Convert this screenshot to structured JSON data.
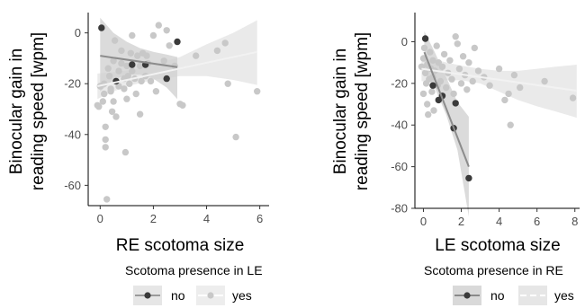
{
  "chart_data": [
    {
      "type": "scatter",
      "xlabel": "RE scotoma size",
      "ylabel_lines": [
        "Binocular gain in",
        "reading speed [wpm]"
      ],
      "xlim": [
        -0.45,
        6.35
      ],
      "ylim": [
        -68,
        8
      ],
      "xticks": [
        0,
        2,
        4,
        6
      ],
      "yticks": [
        0,
        -20,
        -40,
        -60
      ],
      "grid": false,
      "legend": {
        "title": "Scotoma presence in LE",
        "entries": [
          "no",
          "yes"
        ],
        "placement": "bottom"
      },
      "series": [
        {
          "name": "no",
          "color": "#3a3a3a",
          "fit": {
            "x": [
              0,
              2.9
            ],
            "y": [
              -9,
              -13.5
            ]
          },
          "band": {
            "x": [
              0,
              0.5,
              1,
              1.5,
              2,
              2.5,
              2.9
            ],
            "lower": [
              -23,
              -18.5,
              -16.5,
              -16.5,
              -18,
              -21.5,
              -26
            ],
            "upper": [
              6,
              0,
              -3.5,
              -6,
              -7.5,
              -8.5,
              -9.5
            ]
          },
          "points": [
            [
              0.05,
              2
            ],
            [
              0.6,
              -19
            ],
            [
              1.2,
              -12.5
            ],
            [
              1.7,
              -12.5
            ],
            [
              2.5,
              -18
            ],
            [
              2.9,
              -3.5
            ]
          ]
        },
        {
          "name": "yes",
          "color": "#c8c8c8",
          "fit": {
            "x": [
              -0.1,
              5.9
            ],
            "y": [
              -21,
              -7.5
            ]
          },
          "band": {
            "x": [
              -0.1,
              0.5,
              1.2,
              2,
              3,
              4,
              5,
              5.9
            ],
            "lower": [
              -26,
              -23,
              -20.5,
              -18.5,
              -17,
              -17,
              -18.5,
              -20.5
            ],
            "upper": [
              -16,
              -15.5,
              -14.5,
              -12.5,
              -9.5,
              -4.5,
              0,
              5
            ]
          },
          "points": [
            [
              -0.1,
              -28.5
            ],
            [
              -0.05,
              -29
            ],
            [
              0,
              -21
            ],
            [
              0.1,
              -27
            ],
            [
              0.15,
              -24
            ],
            [
              0.15,
              -20
            ],
            [
              0.2,
              -37
            ],
            [
              0.2,
              -42
            ],
            [
              0.2,
              -45
            ],
            [
              0.25,
              -65.5
            ],
            [
              0.3,
              -14
            ],
            [
              0.35,
              -17
            ],
            [
              0.4,
              -22
            ],
            [
              0.4,
              -23
            ],
            [
              0.45,
              -31
            ],
            [
              0.5,
              -27
            ],
            [
              0.5,
              -11
            ],
            [
              0.55,
              -3
            ],
            [
              0.6,
              -33
            ],
            [
              0.6,
              -19
            ],
            [
              0.7,
              -21
            ],
            [
              0.7,
              -15
            ],
            [
              0.8,
              -12
            ],
            [
              0.8,
              -7
            ],
            [
              0.9,
              -18
            ],
            [
              0.9,
              -22
            ],
            [
              0.95,
              -47
            ],
            [
              1,
              -13
            ],
            [
              1,
              -26
            ],
            [
              1.05,
              -17
            ],
            [
              1.1,
              -20
            ],
            [
              1.15,
              -8
            ],
            [
              1.2,
              -15
            ],
            [
              1.2,
              -1
            ],
            [
              1.3,
              -18
            ],
            [
              1.35,
              -24
            ],
            [
              1.4,
              -9
            ],
            [
              1.5,
              -13
            ],
            [
              1.5,
              -32
            ],
            [
              1.55,
              -19
            ],
            [
              1.6,
              -8
            ],
            [
              1.7,
              -17
            ],
            [
              1.75,
              -9
            ],
            [
              1.8,
              -12
            ],
            [
              1.9,
              -19
            ],
            [
              2,
              -1
            ],
            [
              2.1,
              -23
            ],
            [
              2.2,
              3
            ],
            [
              2.4,
              -11
            ],
            [
              2.5,
              1
            ],
            [
              2.6,
              -5
            ],
            [
              2.8,
              -13
            ],
            [
              3,
              -28
            ],
            [
              3.1,
              -28.5
            ],
            [
              3.6,
              -9
            ],
            [
              4.4,
              -7
            ],
            [
              4.7,
              -4
            ],
            [
              4.8,
              -20
            ],
            [
              5.1,
              -41
            ],
            [
              5.9,
              -23
            ]
          ]
        }
      ]
    },
    {
      "type": "scatter",
      "xlabel": "LE scotoma size",
      "ylabel_lines": [
        "Binocular gain in",
        "reading speed [wpm]"
      ],
      "xlim": [
        -0.45,
        8.25
      ],
      "ylim": [
        -80,
        14
      ],
      "xticks": [
        0,
        2,
        4,
        6,
        8
      ],
      "yticks": [
        0,
        -20,
        -40,
        -60,
        -80
      ],
      "grid": false,
      "legend": {
        "title": "Scotoma presence in RE",
        "entries": [
          "no",
          "yes"
        ],
        "placement": "bottom"
      },
      "series": [
        {
          "name": "no",
          "color": "#3a3a3a",
          "fit": {
            "x": [
              0.05,
              2.4
            ],
            "y": [
              -5,
              -60
            ]
          },
          "band": {
            "x": [
              0.05,
              0.6,
              1.2,
              1.8,
              2.4
            ],
            "lower": [
              -15,
              -22,
              -35,
              -52,
              -84
            ],
            "upper": [
              5,
              -5,
              -17,
              -29,
              -36
            ]
          },
          "points": [
            [
              0.1,
              1.5
            ],
            [
              0.5,
              -21
            ],
            [
              0.8,
              -28
            ],
            [
              1,
              -26
            ],
            [
              1.6,
              -41.5
            ],
            [
              1.7,
              -29.5
            ],
            [
              2.4,
              -65.5
            ]
          ]
        },
        {
          "name": "yes",
          "color": "#c8c8c8",
          "fit": {
            "x": [
              -0.1,
              8.1
            ],
            "y": [
              -13,
              -23.5
            ]
          },
          "band": {
            "x": [
              -0.1,
              1,
              2,
              3,
              4,
              5,
              6,
              7,
              8.1
            ],
            "lower": [
              -19,
              -18.5,
              -18.5,
              -20,
              -24,
              -28,
              -31,
              -33.5,
              -36.5
            ],
            "upper": [
              -8,
              -9.5,
              -11.5,
              -13,
              -14,
              -14,
              -13,
              -12,
              -11
            ]
          },
          "points": [
            [
              -0.1,
              -12
            ],
            [
              0,
              -8
            ],
            [
              0,
              -25
            ],
            [
              0.05,
              -3
            ],
            [
              0.1,
              -15
            ],
            [
              0.15,
              -20
            ],
            [
              0.2,
              -30
            ],
            [
              0.2,
              -11
            ],
            [
              0.25,
              -35
            ],
            [
              0.3,
              -18
            ],
            [
              0.35,
              -5
            ],
            [
              0.4,
              -13
            ],
            [
              0.45,
              -24
            ],
            [
              0.5,
              -9
            ],
            [
              0.5,
              -17
            ],
            [
              0.55,
              -33
            ],
            [
              0.6,
              -14
            ],
            [
              0.7,
              -2
            ],
            [
              0.75,
              -21
            ],
            [
              0.8,
              -10
            ],
            [
              0.9,
              -19
            ],
            [
              0.95,
              -26
            ],
            [
              1,
              -12
            ],
            [
              1.1,
              -6
            ],
            [
              1.2,
              -22
            ],
            [
              1.3,
              -15
            ],
            [
              1.4,
              -9
            ],
            [
              1.5,
              -18
            ],
            [
              1.6,
              -25
            ],
            [
              1.7,
              2.5
            ],
            [
              1.8,
              -1
            ],
            [
              1.9,
              -13
            ],
            [
              2,
              -20
            ],
            [
              2.1,
              -7
            ],
            [
              2.2,
              -16
            ],
            [
              2.3,
              -23
            ],
            [
              2.4,
              -10
            ],
            [
              2.6,
              -19
            ],
            [
              2.7,
              -3
            ],
            [
              2.9,
              -14
            ],
            [
              3.2,
              -17
            ],
            [
              3.5,
              -21
            ],
            [
              4,
              -13
            ],
            [
              4.3,
              -28
            ],
            [
              4.5,
              -25
            ],
            [
              4.6,
              -40
            ],
            [
              4.8,
              -16
            ],
            [
              5.1,
              -22
            ],
            [
              6.4,
              -19
            ],
            [
              7.9,
              -27
            ]
          ]
        }
      ]
    }
  ]
}
